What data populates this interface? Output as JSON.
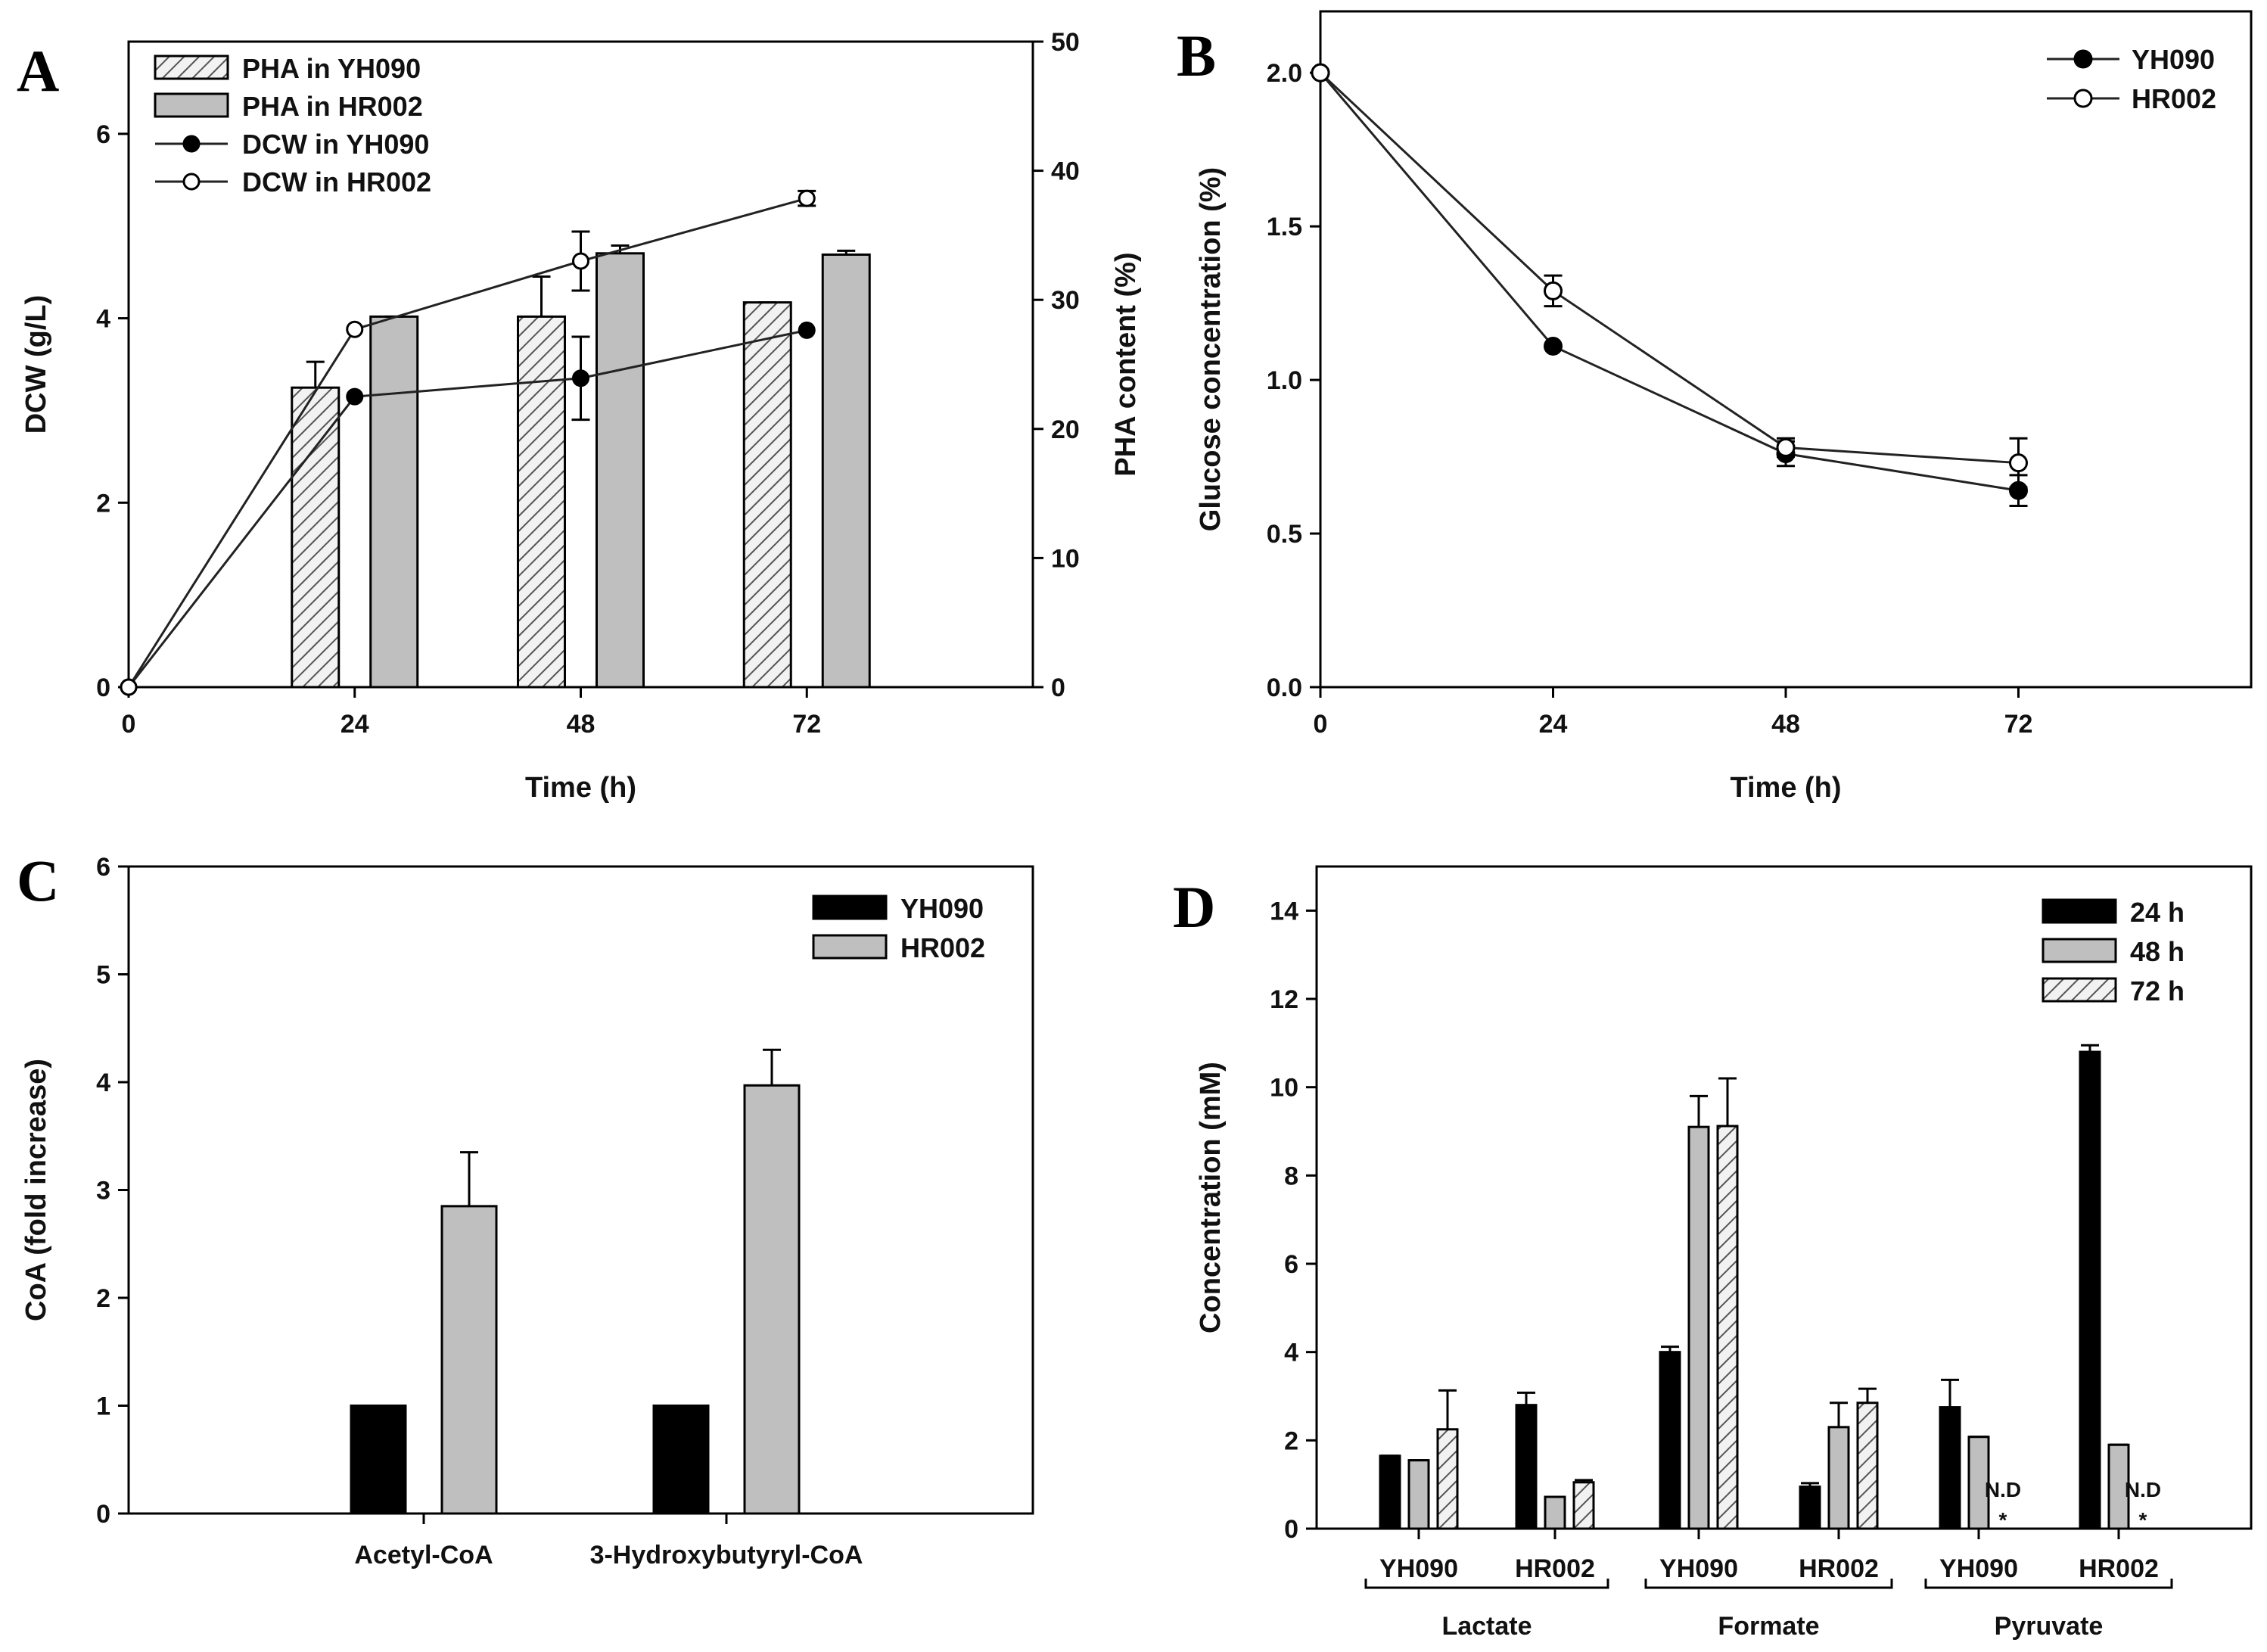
{
  "chart_data": [
    {
      "panel": "A",
      "type": "bar",
      "xlabel": "Time (h)",
      "ylabel": "DCW (g/L)",
      "ylabel_right": "PHA content (%)",
      "xlim": [
        0,
        96
      ],
      "ylim": [
        0,
        7
      ],
      "ylim_right": [
        0,
        50
      ],
      "xticks": [
        "0",
        "24",
        "48",
        "72"
      ],
      "yticks": [
        "0",
        "2",
        "4",
        "6"
      ],
      "yticks_right": [
        "0",
        "10",
        "20",
        "30",
        "40",
        "50"
      ],
      "bar_series": [
        {
          "name": "PHA in YH090",
          "x": [
            24,
            48,
            72
          ],
          "values": [
            23.2,
            28.7,
            29.8
          ],
          "errors": [
            2.0,
            3.1,
            0
          ],
          "color": "#d9d9d9",
          "pattern": "hatch"
        },
        {
          "name": "PHA in HR002",
          "x": [
            24,
            48,
            72
          ],
          "values": [
            28.7,
            33.6,
            33.5
          ],
          "errors": [
            0,
            0.6,
            0.3
          ],
          "color": "#bfbfbf",
          "pattern": "solid"
        }
      ],
      "line_series": [
        {
          "name": "DCW in YH090",
          "x": [
            0,
            24,
            48,
            72
          ],
          "values": [
            0,
            3.15,
            3.35,
            3.87
          ],
          "errors": [
            0,
            0,
            0.45,
            0
          ],
          "marker": "filled"
        },
        {
          "name": "DCW in HR002",
          "x": [
            0,
            24,
            48,
            72
          ],
          "values": [
            0,
            3.88,
            4.62,
            5.3
          ],
          "errors": [
            0,
            0,
            0.32,
            0.08
          ],
          "marker": "open"
        }
      ],
      "legend": [
        "PHA in YH090",
        "PHA in HR002",
        "DCW in YH090",
        "DCW in HR002"
      ]
    },
    {
      "panel": "B",
      "type": "line",
      "xlabel": "Time (h)",
      "ylabel": "Glucose concentration (%)",
      "xlim": [
        0,
        96
      ],
      "ylim": [
        0,
        2.2
      ],
      "xticks": [
        "0",
        "24",
        "48",
        "72"
      ],
      "yticks": [
        "0.0",
        "0.5",
        "1.0",
        "1.5",
        "2.0"
      ],
      "x": [
        0,
        24,
        48,
        72
      ],
      "series": [
        {
          "name": "YH090",
          "values": [
            2.0,
            1.11,
            0.76,
            0.64
          ],
          "errors": [
            0,
            0,
            0.04,
            0.05
          ],
          "marker": "filled"
        },
        {
          "name": "HR002",
          "values": [
            2.0,
            1.29,
            0.78,
            0.73
          ],
          "errors": [
            0,
            0.05,
            0.03,
            0.08
          ],
          "marker": "open"
        }
      ],
      "legend": [
        "YH090",
        "HR002"
      ]
    },
    {
      "panel": "C",
      "type": "bar",
      "xlabel": "",
      "ylabel": "CoA (fold increase)",
      "ylim": [
        0,
        6
      ],
      "yticks": [
        "0",
        "1",
        "2",
        "3",
        "4",
        "5",
        "6"
      ],
      "categories": [
        "Acetyl-CoA",
        "3-Hydroxybutyryl-CoA"
      ],
      "series": [
        {
          "name": "YH090",
          "values": [
            1,
            1
          ],
          "errors": [
            0,
            0
          ],
          "color": "#000000"
        },
        {
          "name": "HR002",
          "values": [
            2.85,
            3.97
          ],
          "errors": [
            0.5,
            0.33
          ],
          "color": "#bfbfbf"
        }
      ],
      "legend": [
        "YH090",
        "HR002"
      ]
    },
    {
      "panel": "D",
      "type": "bar",
      "xlabel": "",
      "ylabel": "Concentration (mM)",
      "ylim": [
        0,
        15
      ],
      "yticks": [
        "0",
        "2",
        "4",
        "6",
        "8",
        "10",
        "12",
        "14"
      ],
      "categories": [
        "YH090",
        "HR002",
        "YH090",
        "HR002",
        "YH090",
        "HR002"
      ],
      "groups": [
        "Lactate",
        "Formate",
        "Pyruvate"
      ],
      "series": [
        {
          "name": "24 h",
          "values": [
            1.65,
            2.8,
            4.0,
            0.95,
            2.75,
            10.8
          ],
          "errors": [
            0,
            0.28,
            0.12,
            0.08,
            0.62,
            0.15
          ],
          "color": "#000000",
          "pattern": "solid"
        },
        {
          "name": "48 h",
          "values": [
            1.55,
            0.72,
            9.1,
            2.3,
            2.08,
            1.9
          ],
          "errors": [
            0,
            0,
            0.7,
            0.55,
            0,
            0
          ],
          "color": "#bfbfbf",
          "pattern": "solid"
        },
        {
          "name": "72 h",
          "values": [
            2.25,
            1.05,
            9.12,
            2.85,
            0,
            0
          ],
          "errors": [
            0.88,
            0.05,
            1.08,
            0.32,
            0,
            0
          ],
          "color": "#d9d9d9",
          "pattern": "hatch"
        }
      ],
      "annotations": [
        "N.D",
        "N.D"
      ],
      "annotation_mark": "*",
      "legend": [
        "24 h",
        "48 h",
        "72 h"
      ]
    }
  ]
}
